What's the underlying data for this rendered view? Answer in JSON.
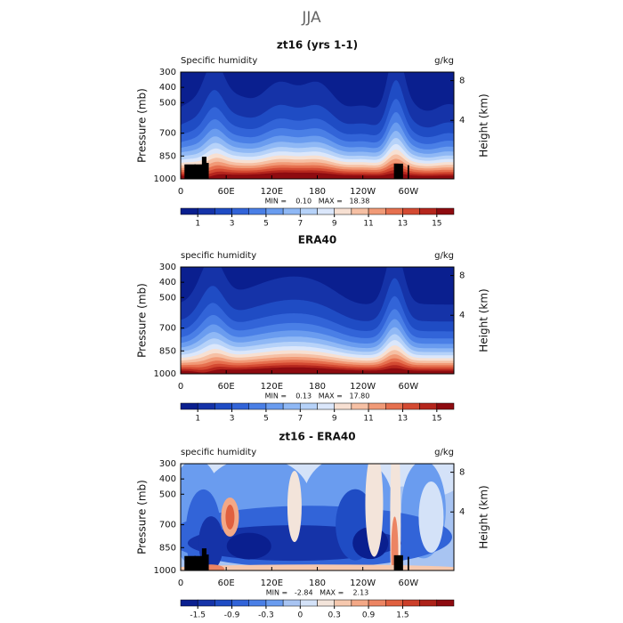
{
  "title": "JJA",
  "chart_data": [
    {
      "type": "contour",
      "title": "zt16 (yrs 1-1)",
      "variable_label": "Specific humidity",
      "units": "g/kg",
      "ylabel": "Pressure (mb)",
      "y2label": "Height (km)",
      "ylim": [
        1000,
        300
      ],
      "yticks": [
        300,
        400,
        500,
        700,
        850,
        1000
      ],
      "y2ticks": [
        8,
        4
      ],
      "xlim": [
        0,
        360
      ],
      "xticks": [
        0,
        {
          "value": 60,
          "label": "60E"
        },
        {
          "value": 120,
          "label": "120E"
        },
        180,
        {
          "value": 240,
          "label": "120W"
        },
        {
          "value": 300,
          "label": "60W"
        }
      ],
      "stats": "MIN =    0.10   MAX =   18.38",
      "colorbar": {
        "ticks": [
          1,
          3,
          5,
          7,
          9,
          11,
          13,
          15
        ],
        "colors": [
          "#0a1f8f",
          "#1533a8",
          "#1f4cc4",
          "#3264d8",
          "#4a7fe6",
          "#6a9cef",
          "#8fb8f5",
          "#b6d2f9",
          "#dbe7fb",
          "#f7e0d2",
          "#f6c0a4",
          "#f19a77",
          "#e6704f",
          "#d44a32",
          "#b5261d",
          "#8e0b10"
        ]
      }
    },
    {
      "type": "contour",
      "title": "ERA40",
      "variable_label": "specific humidity",
      "units": "g/kg",
      "ylabel": "Pressure (mb)",
      "y2label": "Height (km)",
      "ylim": [
        1000,
        300
      ],
      "yticks": [
        300,
        400,
        500,
        700,
        850,
        1000
      ],
      "y2ticks": [
        8,
        4
      ],
      "xlim": [
        0,
        360
      ],
      "xticks": [
        0,
        {
          "value": 60,
          "label": "60E"
        },
        {
          "value": 120,
          "label": "120E"
        },
        180,
        {
          "value": 240,
          "label": "120W"
        },
        {
          "value": 300,
          "label": "60W"
        }
      ],
      "stats": "MIN =    0.13   MAX =   17.80",
      "colorbar": {
        "ticks": [
          1,
          3,
          5,
          7,
          9,
          11,
          13,
          15
        ],
        "colors": [
          "#0a1f8f",
          "#1533a8",
          "#1f4cc4",
          "#3264d8",
          "#4a7fe6",
          "#6a9cef",
          "#8fb8f5",
          "#b6d2f9",
          "#dbe7fb",
          "#f7e0d2",
          "#f6c0a4",
          "#f19a77",
          "#e6704f",
          "#d44a32",
          "#b5261d",
          "#8e0b10"
        ]
      }
    },
    {
      "type": "contour-diff",
      "title": "zt16 - ERA40",
      "variable_label": "specific humidity",
      "units": "g/kg",
      "ylabel": "Pressure (mb)",
      "y2label": "Height (km)",
      "ylim": [
        1000,
        300
      ],
      "yticks": [
        300,
        400,
        500,
        700,
        850,
        1000
      ],
      "y2ticks": [
        8,
        4
      ],
      "xlim": [
        0,
        360
      ],
      "xticks": [
        0,
        {
          "value": 60,
          "label": "60E"
        },
        {
          "value": 120,
          "label": "120E"
        },
        180,
        {
          "value": 240,
          "label": "120W"
        },
        {
          "value": 300,
          "label": "60W"
        }
      ],
      "stats": "MIN =   -2.84   MAX =    2.13",
      "colorbar": {
        "ticks": [
          -1.5,
          -0.9,
          -0.3,
          0,
          0.3,
          0.9,
          1.5
        ],
        "colors": [
          "#0a1f8f",
          "#1533a8",
          "#1f4cc4",
          "#3264d8",
          "#4a7fe6",
          "#6a9cef",
          "#a8c4f2",
          "#d4e2f8",
          "#f3e4da",
          "#f6c8ae",
          "#f3a886",
          "#ec8462",
          "#e0603f",
          "#cc3f2a",
          "#ad2219",
          "#8e0b10"
        ]
      }
    }
  ]
}
